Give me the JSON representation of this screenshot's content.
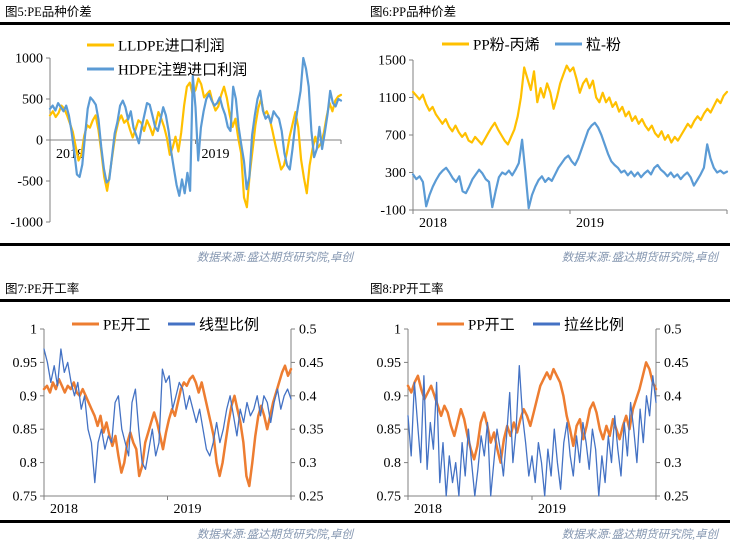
{
  "source_note": "数据来源:盛达期货研究院,卓创",
  "accent_colors": {
    "gold": "#FFC000",
    "light_blue": "#5B9BD5",
    "orange": "#ED7D31",
    "blue": "#4472C4",
    "note_gray_blue": "#8496B0",
    "axis_gray": "#808080"
  },
  "chart_data": [
    {
      "id": "fig5",
      "type": "line",
      "title": "图5:PE品种价差",
      "x_ticks": [
        "2018",
        "2019"
      ],
      "y_left": {
        "min": -1000,
        "max": 1000,
        "ticks": [
          1000,
          500,
          0,
          -500,
          -1000
        ]
      },
      "baseline": "zero",
      "legend_layout": "stacked",
      "series": [
        {
          "name": "LLDPE进口利润",
          "color": "#FFC000",
          "axis": "left",
          "values": [
            300,
            350,
            280,
            330,
            420,
            380,
            300,
            200,
            100,
            -80,
            -250,
            -180,
            50,
            180,
            150,
            240,
            300,
            120,
            -150,
            -450,
            -620,
            -400,
            -150,
            80,
            230,
            300,
            210,
            250,
            130,
            30,
            130,
            240,
            210,
            110,
            240,
            160,
            60,
            190,
            340,
            260,
            160,
            20,
            -180,
            -90,
            40,
            -140,
            90,
            420,
            650,
            700,
            560,
            610,
            750,
            680,
            520,
            560,
            600,
            460,
            360,
            410,
            550,
            650,
            510,
            310,
            160,
            260,
            20,
            -160,
            -700,
            -820,
            -420,
            -120,
            180,
            390,
            500,
            310,
            350,
            260,
            110,
            -60,
            -210,
            -360,
            -310,
            -160,
            40,
            190,
            340,
            160,
            -240,
            -460,
            -650,
            -310,
            -110,
            40,
            -90,
            -40,
            90,
            290,
            450,
            350,
            480,
            530,
            550
          ]
        },
        {
          "name": "HDPE注塑进口利润",
          "color": "#5B9BD5",
          "axis": "left",
          "values": [
            380,
            420,
            360,
            450,
            400,
            350,
            420,
            300,
            100,
            -150,
            -420,
            -450,
            -300,
            50,
            380,
            520,
            480,
            430,
            250,
            -80,
            -350,
            -520,
            -480,
            -200,
            80,
            220,
            420,
            480,
            400,
            250,
            350,
            150,
            60,
            -40,
            150,
            300,
            450,
            430,
            300,
            160,
            110,
            250,
            400,
            300,
            110,
            -150,
            -350,
            -550,
            -680,
            -480,
            -650,
            -400,
            -620,
            780,
            400,
            -250,
            150,
            350,
            500,
            560,
            480,
            420,
            450,
            520,
            400,
            310,
            160,
            110,
            650,
            500,
            160,
            -60,
            -260,
            -600,
            -450,
            60,
            300,
            500,
            600,
            360,
            260,
            300,
            210,
            350,
            300,
            260,
            110,
            -160,
            -310,
            -360,
            -110,
            190,
            400,
            600,
            1000,
            870,
            650,
            110,
            -210,
            -110,
            160,
            -110,
            90,
            310,
            600,
            450,
            410,
            500,
            480
          ]
        }
      ]
    },
    {
      "id": "fig6",
      "type": "line",
      "title": "图6:PP品种价差",
      "x_ticks": [
        "2018",
        "2019"
      ],
      "y_left": {
        "min": -100,
        "max": 1500,
        "ticks": [
          1500,
          1100,
          700,
          300,
          -100
        ]
      },
      "baseline": "bottom",
      "legend_layout": "row",
      "series": [
        {
          "name": "PP粉-丙烯",
          "color": "#FFC000",
          "axis": "left",
          "values": [
            1160,
            1120,
            1080,
            1130,
            1030,
            960,
            1000,
            920,
            870,
            820,
            870,
            790,
            740,
            800,
            730,
            680,
            720,
            640,
            620,
            680,
            640,
            600,
            660,
            720,
            780,
            830,
            760,
            700,
            640,
            600,
            680,
            760,
            900,
            1100,
            1420,
            1300,
            1180,
            1380,
            1050,
            1200,
            1100,
            1250,
            1150,
            980,
            1100,
            1250,
            1350,
            1440,
            1380,
            1420,
            1300,
            1150,
            1250,
            1300,
            1200,
            1280,
            1100,
            1050,
            1150,
            1050,
            1100,
            1000,
            1050,
            950,
            1000,
            900,
            950,
            850,
            900,
            820,
            870,
            800,
            750,
            800,
            720,
            680,
            740,
            650,
            700,
            620,
            680,
            640,
            700,
            760,
            820,
            780,
            850,
            900,
            860,
            930,
            980,
            940,
            1010,
            1080,
            1040,
            1120,
            1160
          ]
        },
        {
          "name": "粒-粉",
          "color": "#5B9BD5",
          "axis": "left",
          "values": [
            280,
            230,
            260,
            200,
            -60,
            60,
            150,
            220,
            280,
            320,
            350,
            300,
            240,
            200,
            260,
            100,
            80,
            150,
            230,
            280,
            330,
            290,
            230,
            200,
            -70,
            100,
            250,
            300,
            280,
            320,
            270,
            330,
            400,
            650,
            300,
            -80,
            60,
            150,
            220,
            260,
            200,
            240,
            210,
            280,
            350,
            400,
            450,
            480,
            420,
            380,
            450,
            550,
            650,
            750,
            800,
            830,
            780,
            700,
            600,
            500,
            420,
            380,
            350,
            300,
            320,
            270,
            310,
            260,
            300,
            250,
            290,
            320,
            280,
            350,
            380,
            330,
            300,
            260,
            300,
            250,
            280,
            230,
            270,
            300,
            250,
            160,
            220,
            280,
            350,
            600,
            450,
            350,
            300,
            320,
            290,
            310
          ]
        }
      ]
    },
    {
      "id": "fig7",
      "type": "line",
      "title": "图7:PE开工率",
      "x_ticks": [
        "2018",
        "2019"
      ],
      "y_left": {
        "min": 0.75,
        "max": 1,
        "ticks": [
          1,
          0.95,
          0.9,
          0.85,
          0.8,
          0.75
        ]
      },
      "y_right": {
        "min": 0.25,
        "max": 0.5,
        "ticks": [
          0.5,
          0.45,
          0.4,
          0.35,
          0.3,
          0.25
        ]
      },
      "baseline": "bottom",
      "legend_layout": "row",
      "series": [
        {
          "name": "PE开工",
          "color": "#ED7D31",
          "axis": "left",
          "values": [
            0.91,
            0.915,
            0.905,
            0.92,
            0.91,
            0.925,
            0.915,
            0.905,
            0.915,
            0.91,
            0.92,
            0.905,
            0.9,
            0.91,
            0.9,
            0.89,
            0.88,
            0.87,
            0.855,
            0.87,
            0.845,
            0.86,
            0.84,
            0.825,
            0.84,
            0.81,
            0.785,
            0.8,
            0.83,
            0.845,
            0.83,
            0.82,
            0.78,
            0.795,
            0.83,
            0.845,
            0.86,
            0.875,
            0.86,
            0.84,
            0.82,
            0.845,
            0.865,
            0.88,
            0.87,
            0.89,
            0.91,
            0.92,
            0.915,
            0.925,
            0.93,
            0.92,
            0.905,
            0.92,
            0.9,
            0.88,
            0.86,
            0.84,
            0.8,
            0.78,
            0.8,
            0.83,
            0.86,
            0.885,
            0.9,
            0.88,
            0.86,
            0.83,
            0.78,
            0.765,
            0.8,
            0.84,
            0.87,
            0.885,
            0.87,
            0.85,
            0.87,
            0.89,
            0.905,
            0.92,
            0.935,
            0.945,
            0.93,
            0.94
          ]
        },
        {
          "name": "线型比例",
          "color": "#4472C4",
          "axis": "right",
          "values": [
            0.47,
            0.45,
            0.42,
            0.445,
            0.415,
            0.47,
            0.435,
            0.45,
            0.42,
            0.4,
            0.42,
            0.38,
            0.4,
            0.35,
            0.33,
            0.27,
            0.33,
            0.35,
            0.32,
            0.34,
            0.33,
            0.39,
            0.4,
            0.35,
            0.33,
            0.31,
            0.39,
            0.41,
            0.35,
            0.3,
            0.29,
            0.32,
            0.35,
            0.31,
            0.33,
            0.44,
            0.42,
            0.43,
            0.38,
            0.4,
            0.42,
            0.41,
            0.38,
            0.4,
            0.38,
            0.36,
            0.38,
            0.35,
            0.32,
            0.31,
            0.33,
            0.36,
            0.33,
            0.35,
            0.38,
            0.4,
            0.37,
            0.34,
            0.38,
            0.36,
            0.39,
            0.37,
            0.38,
            0.4,
            0.37,
            0.4,
            0.39,
            0.36,
            0.39,
            0.41,
            0.38,
            0.4,
            0.41,
            0.395
          ]
        }
      ]
    },
    {
      "id": "fig8",
      "type": "line",
      "title": "图8:PP开工率",
      "x_ticks": [
        "2018",
        "2019"
      ],
      "y_left": {
        "min": 0.75,
        "max": 1,
        "ticks": [
          1,
          0.95,
          0.9,
          0.85,
          0.8,
          0.75
        ]
      },
      "y_right": {
        "min": 0.25,
        "max": 0.5,
        "ticks": [
          0.5,
          0.45,
          0.4,
          0.35,
          0.3,
          0.25
        ]
      },
      "baseline": "bottom",
      "legend_layout": "row",
      "series": [
        {
          "name": "PP开工",
          "color": "#ED7D31",
          "axis": "left",
          "values": [
            0.915,
            0.905,
            0.92,
            0.93,
            0.91,
            0.895,
            0.905,
            0.915,
            0.9,
            0.885,
            0.87,
            0.885,
            0.875,
            0.855,
            0.84,
            0.86,
            0.88,
            0.865,
            0.84,
            0.82,
            0.805,
            0.825,
            0.86,
            0.875,
            0.855,
            0.83,
            0.845,
            0.82,
            0.8,
            0.835,
            0.855,
            0.84,
            0.86,
            0.845,
            0.865,
            0.88,
            0.87,
            0.855,
            0.875,
            0.895,
            0.915,
            0.925,
            0.935,
            0.925,
            0.94,
            0.93,
            0.92,
            0.9,
            0.87,
            0.85,
            0.825,
            0.855,
            0.865,
            0.835,
            0.855,
            0.88,
            0.89,
            0.875,
            0.85,
            0.835,
            0.855,
            0.84,
            0.865,
            0.85,
            0.835,
            0.855,
            0.87,
            0.85,
            0.88,
            0.895,
            0.91,
            0.93,
            0.95,
            0.94,
            0.92,
            0.91
          ]
        },
        {
          "name": "拉丝比例",
          "color": "#4472C4",
          "axis": "right",
          "values": [
            0.37,
            0.31,
            0.42,
            0.36,
            0.3,
            0.43,
            0.29,
            0.36,
            0.32,
            0.42,
            0.27,
            0.33,
            0.25,
            0.31,
            0.27,
            0.3,
            0.25,
            0.33,
            0.28,
            0.35,
            0.3,
            0.25,
            0.29,
            0.34,
            0.31,
            0.36,
            0.25,
            0.3,
            0.35,
            0.32,
            0.28,
            0.34,
            0.405,
            0.3,
            0.35,
            0.445,
            0.37,
            0.33,
            0.28,
            0.31,
            0.27,
            0.33,
            0.3,
            0.25,
            0.32,
            0.28,
            0.35,
            0.3,
            0.26,
            0.33,
            0.36,
            0.31,
            0.28,
            0.34,
            0.3,
            0.36,
            0.33,
            0.29,
            0.35,
            0.32,
            0.25,
            0.31,
            0.27,
            0.34,
            0.3,
            0.37,
            0.32,
            0.28,
            0.36,
            0.31,
            0.39,
            0.35,
            0.3,
            0.38,
            0.33,
            0.4,
            0.37,
            0.43,
            0.39
          ]
        }
      ]
    }
  ]
}
